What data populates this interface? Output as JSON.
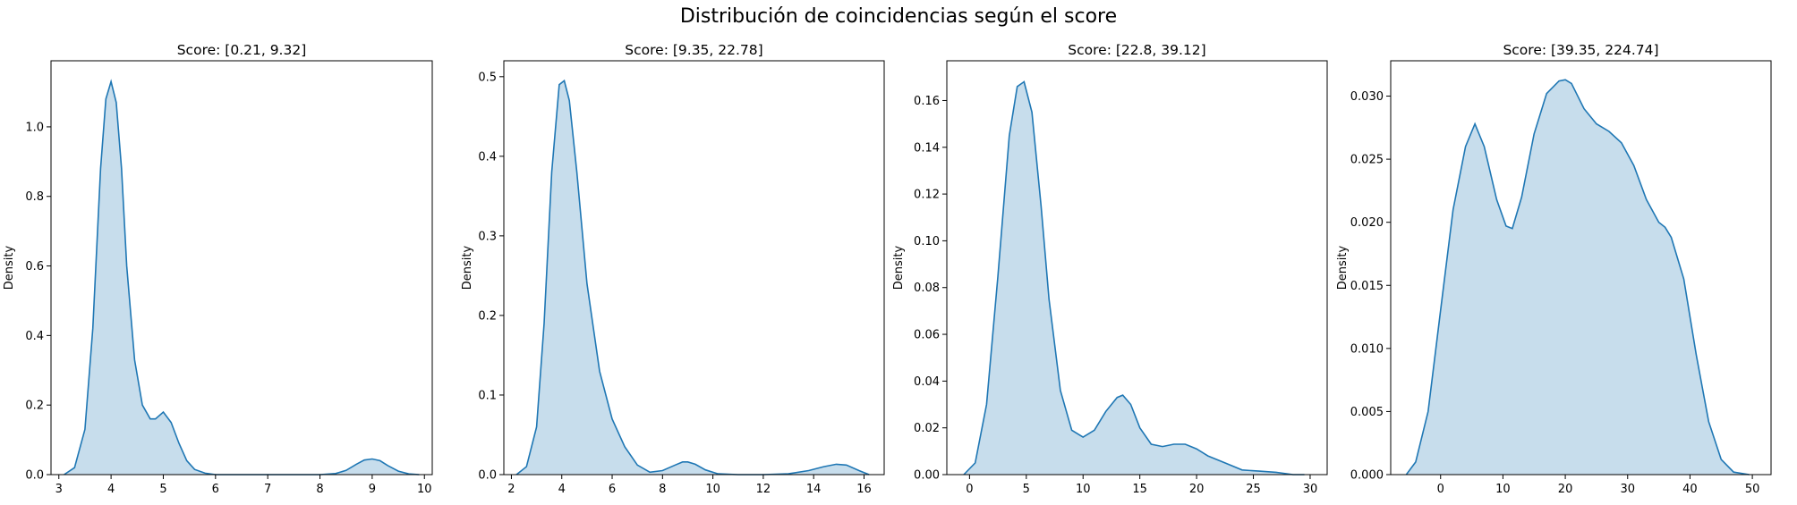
{
  "figure": {
    "suptitle": "Distribución de coincidencias según el score"
  },
  "colors": {
    "line": "#1f77b4",
    "fill": "#1f77b4"
  },
  "chart_data": [
    {
      "type": "area",
      "title": "Score: [0.21, 9.32]",
      "xlabel": "",
      "ylabel": "Density",
      "xlim": [
        2.85,
        10.15
      ],
      "ylim": [
        0,
        1.19
      ],
      "xticks": [
        3,
        4,
        5,
        6,
        7,
        8,
        9,
        10
      ],
      "yticks": [
        0.0,
        0.2,
        0.4,
        0.6,
        0.8,
        1.0
      ],
      "ytick_labels": [
        "0.0",
        "0.2",
        "0.4",
        "0.6",
        "0.8",
        "1.0"
      ],
      "x": [
        3.1,
        3.3,
        3.5,
        3.65,
        3.8,
        3.9,
        4.0,
        4.1,
        4.2,
        4.3,
        4.45,
        4.6,
        4.75,
        4.85,
        5.0,
        5.15,
        5.3,
        5.45,
        5.6,
        5.8,
        6.0,
        6.5,
        7.0,
        7.5,
        8.0,
        8.3,
        8.5,
        8.7,
        8.85,
        9.0,
        9.15,
        9.3,
        9.5,
        9.7,
        9.9
      ],
      "y": [
        0.0,
        0.02,
        0.13,
        0.42,
        0.88,
        1.08,
        1.13,
        1.07,
        0.88,
        0.6,
        0.33,
        0.2,
        0.16,
        0.16,
        0.18,
        0.15,
        0.09,
        0.04,
        0.015,
        0.004,
        0.0,
        0.0,
        0.0,
        0.0,
        0.0,
        0.003,
        0.012,
        0.03,
        0.042,
        0.045,
        0.04,
        0.026,
        0.01,
        0.002,
        0.0
      ]
    },
    {
      "type": "area",
      "title": "Score: [9.35, 22.78]",
      "xlabel": "",
      "ylabel": "Density",
      "xlim": [
        1.7,
        16.8
      ],
      "ylim": [
        0,
        0.52
      ],
      "xticks": [
        2,
        4,
        6,
        8,
        10,
        12,
        14,
        16
      ],
      "yticks": [
        0.0,
        0.1,
        0.2,
        0.3,
        0.4,
        0.5
      ],
      "ytick_labels": [
        "0.0",
        "0.1",
        "0.2",
        "0.3",
        "0.4",
        "0.5"
      ],
      "x": [
        2.2,
        2.6,
        3.0,
        3.3,
        3.6,
        3.9,
        4.1,
        4.3,
        4.6,
        5.0,
        5.5,
        6.0,
        6.5,
        7.0,
        7.5,
        8.0,
        8.5,
        8.8,
        9.0,
        9.3,
        9.7,
        10.2,
        11.0,
        12.0,
        13.0,
        13.8,
        14.4,
        14.9,
        15.3,
        15.8,
        16.2
      ],
      "y": [
        0.0,
        0.01,
        0.06,
        0.19,
        0.38,
        0.49,
        0.495,
        0.47,
        0.38,
        0.24,
        0.13,
        0.07,
        0.035,
        0.012,
        0.003,
        0.005,
        0.012,
        0.016,
        0.016,
        0.013,
        0.006,
        0.001,
        0.0,
        0.0,
        0.001,
        0.005,
        0.01,
        0.013,
        0.012,
        0.005,
        0.0
      ]
    },
    {
      "type": "area",
      "title": "Score: [22.8, 39.12]",
      "xlabel": "",
      "ylabel": "Density",
      "xlim": [
        -2,
        31.5
      ],
      "ylim": [
        0,
        0.177
      ],
      "xticks": [
        0,
        5,
        10,
        15,
        20,
        25,
        30
      ],
      "yticks": [
        0.0,
        0.02,
        0.04,
        0.06,
        0.08,
        0.1,
        0.12,
        0.14,
        0.16
      ],
      "ytick_labels": [
        "0.00",
        "0.02",
        "0.04",
        "0.06",
        "0.08",
        "0.10",
        "0.12",
        "0.14",
        "0.16"
      ],
      "x": [
        -0.5,
        0.5,
        1.5,
        2.5,
        3.5,
        4.2,
        4.8,
        5.5,
        6.3,
        7.0,
        8.0,
        9.0,
        10.0,
        11.0,
        12.0,
        13.0,
        13.5,
        14.2,
        15.0,
        16.0,
        17.0,
        18.0,
        19.0,
        20.0,
        21.0,
        22.5,
        24.0,
        25.5,
        27.0,
        28.5,
        29.5
      ],
      "y": [
        0.0,
        0.005,
        0.03,
        0.085,
        0.145,
        0.166,
        0.168,
        0.155,
        0.115,
        0.075,
        0.036,
        0.019,
        0.016,
        0.019,
        0.027,
        0.033,
        0.034,
        0.03,
        0.02,
        0.013,
        0.012,
        0.013,
        0.013,
        0.011,
        0.008,
        0.005,
        0.002,
        0.0015,
        0.001,
        0.0,
        0.0
      ]
    },
    {
      "type": "area",
      "title": "Score: [39.35, 224.74]",
      "xlabel": "",
      "ylabel": "Density",
      "xlim": [
        -8,
        53
      ],
      "ylim": [
        0,
        0.0328
      ],
      "xticks": [
        0,
        10,
        20,
        30,
        40,
        50
      ],
      "yticks": [
        0.0,
        0.005,
        0.01,
        0.015,
        0.02,
        0.025,
        0.03
      ],
      "ytick_labels": [
        "0.000",
        "0.005",
        "0.010",
        "0.015",
        "0.020",
        "0.025",
        "0.030"
      ],
      "x": [
        -5.5,
        -4,
        -2,
        0,
        2,
        4,
        5.5,
        7,
        9,
        10.5,
        11.5,
        13,
        15,
        17,
        19,
        20,
        21,
        23,
        25,
        27,
        29,
        31,
        33,
        35,
        36,
        37,
        39,
        41,
        43,
        45,
        47,
        49.5
      ],
      "y": [
        0.0,
        0.001,
        0.005,
        0.013,
        0.021,
        0.026,
        0.0278,
        0.026,
        0.0218,
        0.0197,
        0.0195,
        0.022,
        0.027,
        0.0302,
        0.0312,
        0.0313,
        0.031,
        0.029,
        0.0278,
        0.0272,
        0.0263,
        0.0245,
        0.0218,
        0.02,
        0.0196,
        0.0188,
        0.0155,
        0.0095,
        0.0042,
        0.0012,
        0.0002,
        0.0
      ]
    }
  ]
}
